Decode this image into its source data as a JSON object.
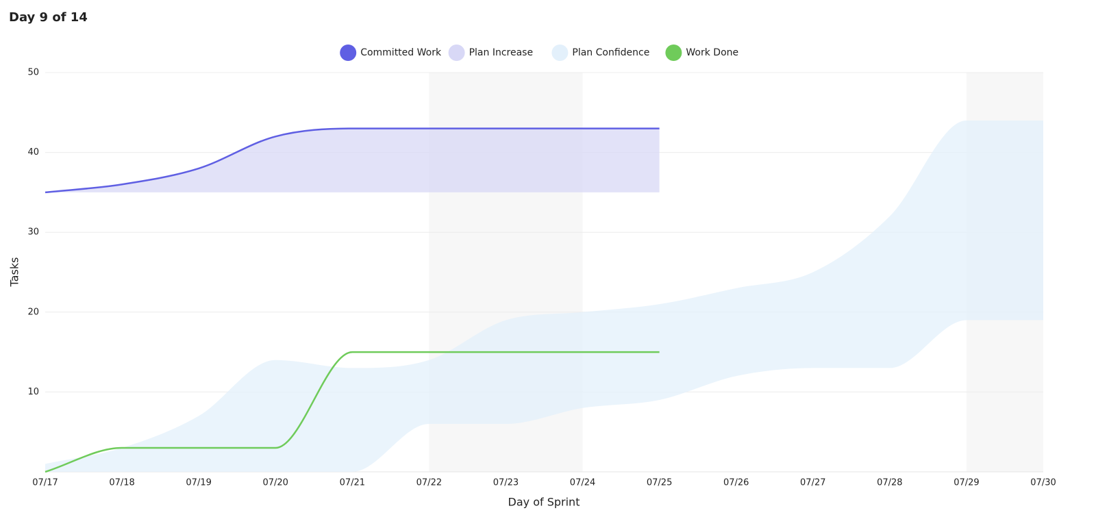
{
  "chart_data": {
    "type": "area",
    "title": "Day 9 of 14",
    "x_label": "Day of Sprint",
    "y_label": "Tasks",
    "categories": [
      "07/17",
      "07/18",
      "07/19",
      "07/20",
      "07/21",
      "07/22",
      "07/23",
      "07/24",
      "07/25",
      "07/26",
      "07/27",
      "07/28",
      "07/29",
      "07/30"
    ],
    "ylim": [
      0,
      50
    ],
    "yticks": [
      10,
      20,
      30,
      40,
      50
    ],
    "grid": true,
    "legend": "top",
    "shaded_ranges": [
      {
        "from": "07/22",
        "to": "07/24"
      },
      {
        "from": "07/29",
        "to": "07/30"
      }
    ],
    "series": [
      {
        "name": "Committed Work",
        "color": "#5f5fe3",
        "kind": "line",
        "values": [
          35,
          36,
          38,
          42,
          43,
          43,
          43,
          43,
          43,
          null,
          null,
          null,
          null,
          null
        ]
      },
      {
        "name": "Plan Increase",
        "color": "#d8d8f6",
        "kind": "fill_to",
        "fill_to": "Committed Work",
        "values": [
          35,
          35,
          35,
          35,
          35,
          35,
          35,
          35,
          35,
          null,
          null,
          null,
          null,
          null
        ]
      },
      {
        "name": "Plan Confidence",
        "color": "#e3f0fb",
        "kind": "band",
        "low": [
          0,
          0,
          0,
          0,
          0,
          6,
          6,
          8,
          9,
          12,
          13,
          13,
          19,
          19
        ],
        "high": [
          1,
          3,
          7,
          14,
          13,
          14,
          19,
          20,
          21,
          23,
          25,
          32,
          44,
          44
        ]
      },
      {
        "name": "Work Done",
        "color": "#6fcb5a",
        "kind": "line",
        "values": [
          0,
          3,
          3,
          3,
          15,
          15,
          15,
          15,
          15,
          null,
          null,
          null,
          null,
          null
        ]
      }
    ]
  }
}
